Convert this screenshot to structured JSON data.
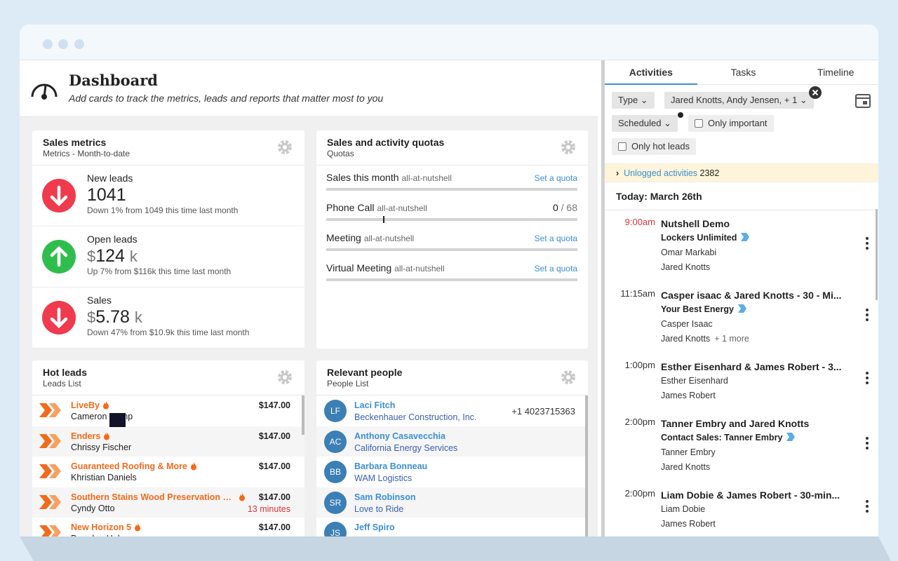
{
  "header": {
    "title": "Dashboard",
    "subtitle": "Add cards to track the metrics, leads and reports that matter most to you"
  },
  "sales_metrics": {
    "title": "Sales metrics",
    "subtitle": "Metrics - Month-to-date",
    "items": [
      {
        "label": "New leads",
        "value": "1041",
        "change": "Down 1% from 1049 this time last month",
        "direction": "down"
      },
      {
        "label": "Open leads",
        "currency": "$",
        "value": "124",
        "unit": "k",
        "change": "Up 7% from $116k this time last month",
        "direction": "up"
      },
      {
        "label": "Sales",
        "currency": "$",
        "value": "5.78",
        "unit": "k",
        "change": "Down 47% from $10.9k this time last month",
        "direction": "down"
      }
    ]
  },
  "quotas": {
    "title": "Sales and activity quotas",
    "subtitle": "Quotas",
    "items": [
      {
        "name": "Sales this month",
        "scope": "all-at-nutshell",
        "action": "Set a quota"
      },
      {
        "name": "Phone Call",
        "scope": "all-at-nutshell",
        "current": "0",
        "separator": "/",
        "target": "68"
      },
      {
        "name": "Meeting",
        "scope": "all-at-nutshell",
        "action": "Set a quota"
      },
      {
        "name": "Virtual Meeting",
        "scope": "all-at-nutshell",
        "action": "Set a quota"
      }
    ]
  },
  "hot_leads": {
    "title": "Hot leads",
    "subtitle": "Leads List",
    "items": [
      {
        "name": "LiveBy",
        "contact": "Cameron Camp",
        "amount": "$147.00"
      },
      {
        "name": "Enders",
        "contact": "Chrissy Fischer",
        "amount": "$147.00"
      },
      {
        "name": "Guaranteed Roofing & More",
        "contact": "Khristian Daniels",
        "amount": "$147.00"
      },
      {
        "name": "Southern Stains Wood Preservation Ex...",
        "contact": "Cyndy Otto",
        "amount": "$147.00",
        "note": "13 minutes"
      },
      {
        "name": "New Horizon 5",
        "contact": "Brandon Hale",
        "amount": "$147.00"
      }
    ]
  },
  "people": {
    "title": "Relevant people",
    "subtitle": "People List",
    "items": [
      {
        "initials": "LF",
        "name": "Laci Fitch",
        "company": "Beckenhauer Construction, Inc.",
        "phone": "+1 4023715363"
      },
      {
        "initials": "AC",
        "name": "Anthony Casavecchia",
        "company": "California Energy Services"
      },
      {
        "initials": "BB",
        "name": "Barbara Bonneau",
        "company": "WAM Logistics"
      },
      {
        "initials": "SR",
        "name": "Sam Robinson",
        "company": "Love to Ride"
      },
      {
        "initials": "JS",
        "name": "Jeff Spiro"
      }
    ]
  },
  "sidebar": {
    "tabs": [
      "Activities",
      "Tasks",
      "Timeline"
    ],
    "filters": {
      "type": "Type",
      "people": "Jared Knotts, Andy Jensen, + 1",
      "status": "Scheduled",
      "important": "Only important",
      "hot": "Only hot leads"
    },
    "unlogged": {
      "label": "Unlogged activities",
      "count": "2382"
    },
    "day": "Today: March 26th",
    "activities": [
      {
        "time": "9:00am",
        "overdue": true,
        "title": "Nutshell Demo",
        "company": "Lockers Unlimited",
        "people": [
          "Omar Markabi",
          "Jared Knotts"
        ]
      },
      {
        "time": "11:15am",
        "title": "Casper isaac & Jared Knotts - 30 - Mi...",
        "company": "Your Best Energy",
        "people": [
          "Casper Isaac",
          "Jared Knotts"
        ],
        "more": "+ 1 more"
      },
      {
        "time": "1:00pm",
        "title": "Esther Eisenhard & James Robert - 3...",
        "people": [
          "Esther Eisenhard",
          "James Robert"
        ]
      },
      {
        "time": "2:00pm",
        "title": "Tanner Embry and Jared Knotts",
        "company": "Contact Sales: Tanner Embry",
        "people": [
          "Tanner Embry",
          "Jared Knotts"
        ]
      },
      {
        "time": "2:00pm",
        "title": "Liam Dobie & James Robert - 30-min...",
        "people": [
          "Liam Dobie",
          "James Robert"
        ]
      }
    ]
  }
}
